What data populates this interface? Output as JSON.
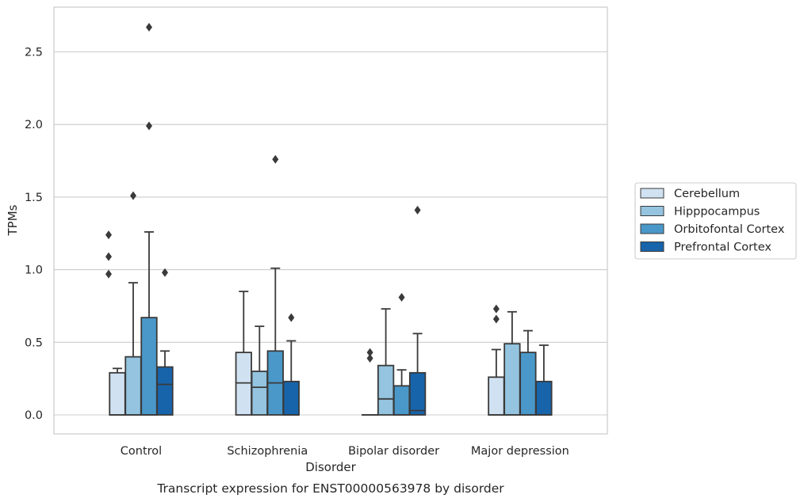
{
  "chart_data": {
    "type": "boxplot",
    "title": "",
    "caption": "Transcript expression for ENST00000563978 by disorder",
    "xlabel": "Disorder",
    "ylabel": "TPMs",
    "ylim": [
      -0.13,
      2.82
    ],
    "yticks": [
      0.0,
      0.5,
      1.0,
      1.5,
      2.0,
      2.5
    ],
    "ytick_labels": [
      "0.0",
      "0.5",
      "1.0",
      "1.5",
      "2.0",
      "2.5"
    ],
    "grid": "horizontal",
    "legend_position": "right",
    "categories": [
      "Control",
      "Schizophrenia",
      "Bipolar disorder",
      "Major depression"
    ],
    "colors": [
      "#d0e1f2",
      "#94c4df",
      "#4a98c9",
      "#1764ab"
    ],
    "series": [
      {
        "name": "Cerebellum",
        "boxes": [
          {
            "whislo": 0.0,
            "q1": 0.0,
            "med": 0.0,
            "q3": 0.29,
            "whishi": 0.32,
            "fliers": []
          },
          {
            "whislo": 0.0,
            "q1": 0.0,
            "med": 0.22,
            "q3": 0.43,
            "whishi": 0.85,
            "fliers": []
          },
          {
            "whislo": 0.0,
            "q1": 0.0,
            "med": 0.0,
            "q3": 0.0,
            "whishi": 0.0,
            "fliers": [
              0.39,
              0.43
            ]
          },
          {
            "whislo": 0.0,
            "q1": 0.0,
            "med": 0.0,
            "q3": 0.26,
            "whishi": 0.45,
            "fliers": [
              0.66,
              0.73
            ]
          }
        ]
      },
      {
        "name": "Hipppocampus",
        "boxes": [
          {
            "whislo": 0.0,
            "q1": 0.0,
            "med": 0.0,
            "q3": 0.4,
            "whishi": 0.91,
            "fliers": [
              1.51
            ]
          },
          {
            "whislo": 0.0,
            "q1": 0.0,
            "med": 0.19,
            "q3": 0.3,
            "whishi": 0.61,
            "fliers": []
          },
          {
            "whislo": 0.0,
            "q1": 0.0,
            "med": 0.11,
            "q3": 0.34,
            "whishi": 0.73,
            "fliers": []
          },
          {
            "whislo": 0.0,
            "q1": 0.0,
            "med": 0.0,
            "q3": 0.49,
            "whishi": 0.71,
            "fliers": []
          }
        ]
      },
      {
        "name": "Orbitofontal Cortex",
        "boxes": [
          {
            "whislo": 0.0,
            "q1": 0.0,
            "med": 0.0,
            "q3": 0.67,
            "whishi": 1.26,
            "fliers": [
              1.99,
              2.67
            ]
          },
          {
            "whislo": 0.0,
            "q1": 0.0,
            "med": 0.22,
            "q3": 0.44,
            "whishi": 1.01,
            "fliers": [
              1.76
            ]
          },
          {
            "whislo": 0.0,
            "q1": 0.0,
            "med": 0.0,
            "q3": 0.2,
            "whishi": 0.31,
            "fliers": [
              0.81
            ]
          },
          {
            "whislo": 0.0,
            "q1": 0.0,
            "med": 0.0,
            "q3": 0.43,
            "whishi": 0.58,
            "fliers": []
          }
        ]
      },
      {
        "name": "Prefrontal Cortex",
        "boxes": [
          {
            "whislo": 0.0,
            "q1": 0.0,
            "med": 0.21,
            "q3": 0.33,
            "whishi": 0.44,
            "fliers": [
              0.98
            ]
          },
          {
            "whislo": 0.0,
            "q1": 0.0,
            "med": 0.0,
            "q3": 0.23,
            "whishi": 0.51,
            "fliers": [
              0.67
            ]
          },
          {
            "whislo": 0.0,
            "q1": 0.0,
            "med": 0.03,
            "q3": 0.29,
            "whishi": 0.56,
            "fliers": [
              1.41
            ]
          },
          {
            "whislo": 0.0,
            "q1": 0.0,
            "med": 0.0,
            "q3": 0.23,
            "whishi": 0.48,
            "fliers": []
          }
        ]
      }
    ],
    "extra_fliers": [
      {
        "category": 0,
        "series": 0,
        "values": [
          0.97,
          1.09,
          1.24
        ]
      }
    ]
  }
}
